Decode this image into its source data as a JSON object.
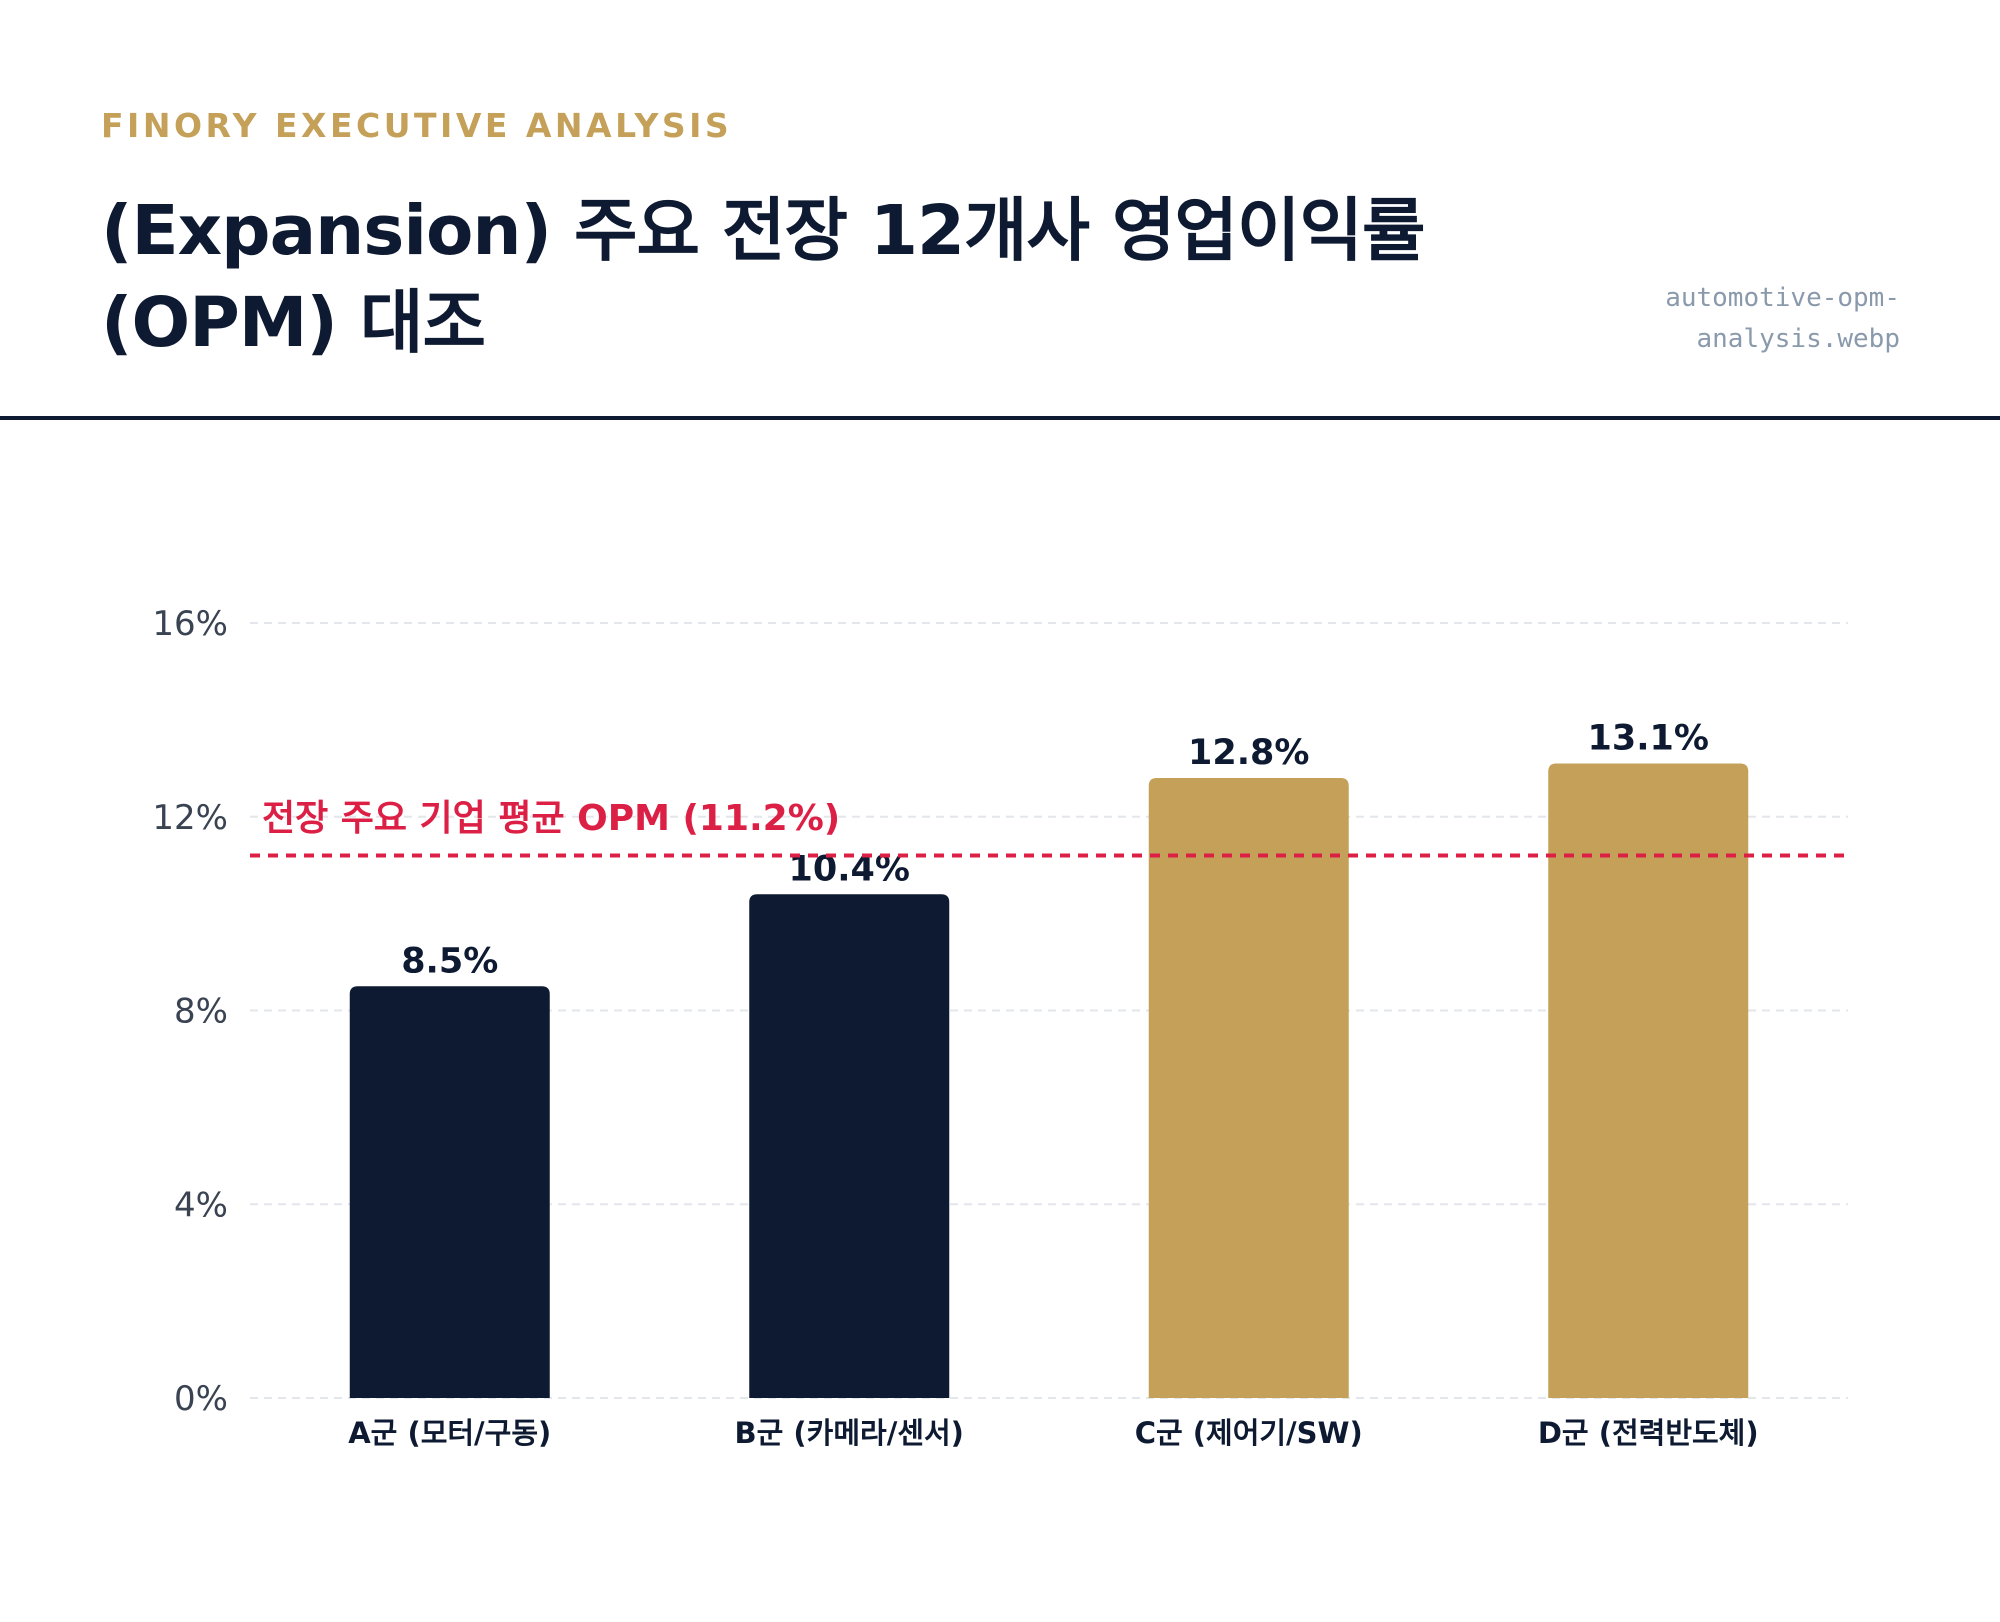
{
  "header": {
    "eyebrow": "FINORY EXECUTIVE ANALYSIS",
    "title_line1": "(Expansion) 주요 전장 12개사 영업이익률",
    "title_line2": "(OPM) 대조",
    "filename_line1": "automotive-opm-",
    "filename_line2": "analysis.webp"
  },
  "colors": {
    "navy": "#0d1a31",
    "gold": "#c4a059",
    "reference": "#dc2045",
    "grid": "#e3e6ea",
    "axis_text": "#3a4352"
  },
  "chart_data": {
    "type": "bar",
    "categories": [
      "A군 (모터/구동)",
      "B군 (카메라/센서)",
      "C군 (제어기/SW)",
      "D군 (전력반도체)"
    ],
    "values": [
      8.5,
      10.4,
      12.8,
      13.1
    ],
    "value_labels": [
      "8.5%",
      "10.4%",
      "12.8%",
      "13.1%"
    ],
    "bar_colors": [
      "#0d1a31",
      "#0d1a31",
      "#c4a059",
      "#c4a059"
    ],
    "ylim": [
      0,
      16
    ],
    "yticks": [
      0,
      4,
      8,
      12,
      16
    ],
    "ytick_labels": [
      "0%",
      "4%",
      "8%",
      "12%",
      "16%"
    ],
    "grid": true,
    "reference_line": {
      "value": 11.2,
      "label": "전장 주요 기업 평균 OPM (11.2%)",
      "style": "dashed"
    }
  }
}
